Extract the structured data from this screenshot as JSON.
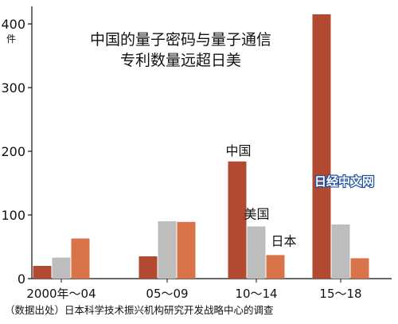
{
  "chart_data": {
    "type": "bar",
    "title_lines": [
      "中国的量子密码与量子通信",
      "专利数量远超日美"
    ],
    "unit_label": "件",
    "categories": [
      "2000年～04",
      "05～09",
      "10～14",
      "15～18"
    ],
    "series": [
      {
        "name": "中国",
        "color": "#b24a32",
        "values": [
          20,
          35,
          184,
          415
        ]
      },
      {
        "name": "美国",
        "color": "#bdbdbd",
        "values": [
          33,
          90,
          82,
          85
        ]
      },
      {
        "name": "日本",
        "color": "#d9744a",
        "values": [
          63,
          89,
          37,
          32
        ]
      }
    ],
    "yticks": [
      0,
      100,
      200,
      300,
      400
    ],
    "ylim": [
      0,
      420
    ],
    "grid": false,
    "series_labels_on_plot": [
      "中国",
      "美国",
      "日本"
    ],
    "source_note": "（数据出处）日本科学技术振兴机构研究开发战略中心的调查",
    "watermark": "日经中文网"
  }
}
